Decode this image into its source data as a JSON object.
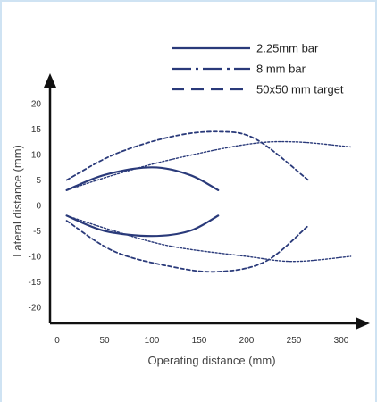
{
  "chart_data": {
    "type": "line",
    "title": "",
    "xlabel": "Operating distance (mm)",
    "ylabel": "Lateral distance (mm)",
    "xlim": [
      0,
      325
    ],
    "ylim": [
      -22,
      22
    ],
    "x_ticks": [
      0,
      50,
      100,
      150,
      200,
      250,
      300
    ],
    "y_ticks": [
      20,
      15,
      10,
      5,
      0,
      -5,
      -10,
      -15,
      -20
    ],
    "grid": false,
    "legend_position": "top-right",
    "series": [
      {
        "name": "2.25mm bar",
        "style": "solid",
        "color": "#2a3a7a",
        "upper": {
          "x": [
            10,
            50,
            100,
            140,
            170
          ],
          "y": [
            3,
            6,
            7.5,
            6,
            3
          ]
        },
        "lower": {
          "x": [
            10,
            50,
            100,
            140,
            170
          ],
          "y": [
            -2,
            -5,
            -6,
            -5,
            -2
          ]
        }
      },
      {
        "name": "8 mm bar",
        "style": "dashdot",
        "color": "#2a3a7a",
        "upper": {
          "x": [
            10,
            60,
            120,
            200,
            250,
            310
          ],
          "y": [
            3,
            6,
            9,
            12,
            12.5,
            11.5
          ]
        },
        "lower": {
          "x": [
            10,
            60,
            120,
            200,
            250,
            310
          ],
          "y": [
            -2,
            -5,
            -8,
            -10,
            -11,
            -10
          ]
        }
      },
      {
        "name": "50x50 mm target",
        "style": "dashed",
        "color": "#2a3a7a",
        "upper": {
          "x": [
            10,
            60,
            120,
            170,
            210,
            265
          ],
          "y": [
            5,
            10,
            13.5,
            14.5,
            13,
            5
          ]
        },
        "lower": {
          "x": [
            10,
            60,
            120,
            170,
            220,
            265
          ],
          "y": [
            -3,
            -9,
            -12,
            -13,
            -11,
            -4
          ]
        }
      }
    ]
  }
}
